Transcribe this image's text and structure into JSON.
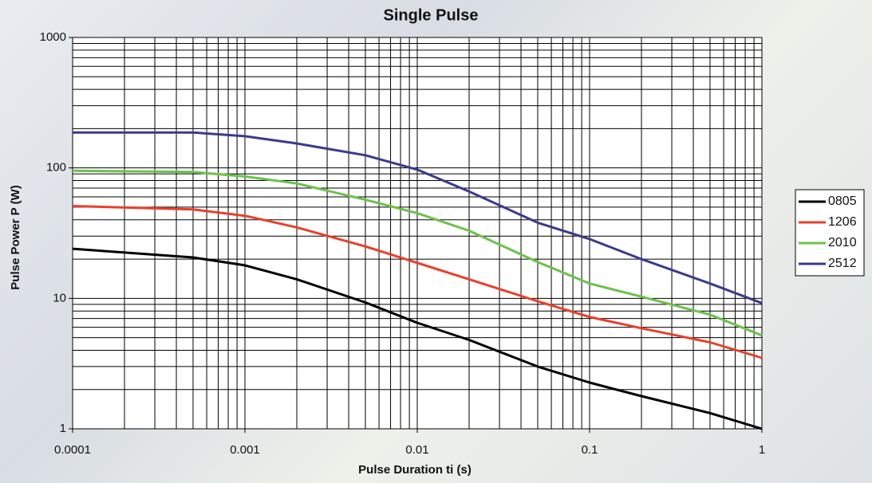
{
  "chart_data": {
    "type": "line",
    "title": "Single Pulse",
    "x_label": "Pulse Duration ti (s)",
    "y_label": "Pulse Power P (W)",
    "x_log": true,
    "y_log": true,
    "grid": true,
    "legend": "right",
    "xlim": [
      0.0001,
      1
    ],
    "ylim": [
      1,
      1000
    ],
    "xticks": [
      0.0001,
      0.001,
      0.01,
      0.1,
      1
    ],
    "yticks": [
      1,
      10,
      100,
      1000
    ],
    "x_minor_grid": [
      0.0002,
      0.0003,
      0.0004,
      0.0005,
      0.0006,
      0.0007,
      0.0008,
      0.0009,
      0.002,
      0.003,
      0.004,
      0.005,
      0.006,
      0.007,
      0.008,
      0.009,
      0.02,
      0.03,
      0.04,
      0.05,
      0.06,
      0.07,
      0.08,
      0.09,
      0.2,
      0.3,
      0.4,
      0.5,
      0.6,
      0.7,
      0.8,
      0.9
    ],
    "y_minor_grid": [
      2,
      3,
      4,
      5,
      6,
      7,
      8,
      9,
      20,
      30,
      40,
      50,
      60,
      70,
      80,
      90,
      200,
      300,
      400,
      500,
      600,
      700,
      800,
      900
    ],
    "x": [
      0.0001,
      0.0005,
      0.001,
      0.002,
      0.005,
      0.01,
      0.02,
      0.05,
      0.1,
      0.2,
      0.5,
      1
    ],
    "series": [
      {
        "name": "0805",
        "color": "#000000",
        "values": [
          24,
          20.6,
          17.9,
          14,
          9.3,
          6.5,
          4.8,
          3.0,
          2.26,
          1.78,
          1.32,
          1
        ]
      },
      {
        "name": "1206",
        "color": "#e8402c",
        "values": [
          51,
          48,
          43,
          35,
          25,
          18.7,
          14,
          9.5,
          7.2,
          5.9,
          4.6,
          3.5
        ]
      },
      {
        "name": "2010",
        "color": "#6cc24a",
        "values": [
          95,
          93,
          86,
          76,
          57,
          45,
          33,
          19,
          13,
          10.3,
          7.5,
          5.2
        ]
      },
      {
        "name": "2512",
        "color": "#3a3a8c",
        "values": [
          187,
          187,
          175,
          154,
          125,
          97,
          66,
          38,
          28.5,
          20,
          13,
          9.2
        ]
      }
    ]
  }
}
